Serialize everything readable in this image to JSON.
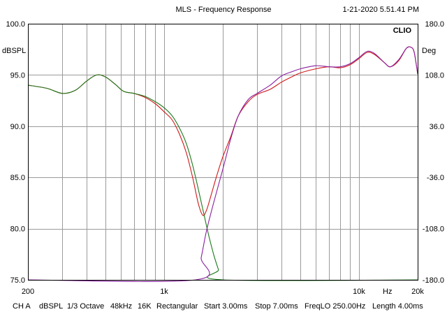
{
  "header": {
    "title": "MLS - Frequency Response",
    "datetime": "1-21-2020 5.51.41 PM",
    "brand": "CLIO"
  },
  "footer": {
    "channel": "CH A",
    "unit": "dBSPL",
    "smoothing": "1/3 Octave",
    "sample_rate": "48kHz",
    "size": "16K",
    "window": "Rectangular",
    "start": "Start 3.00ms",
    "stop": "Stop 7.00ms",
    "freqlo": "FreqLO 250.00Hz",
    "length": "Length 4.00ms"
  },
  "chart_data": {
    "type": "line",
    "title": "MLS - Frequency Response",
    "x_scale": "log",
    "xlim": [
      200,
      20000
    ],
    "x_ticks": [
      {
        "value": 200,
        "label": "200"
      },
      {
        "value": 1000,
        "label": "1k"
      },
      {
        "value": 10000,
        "label": "10k"
      },
      {
        "value": 14000,
        "label": "Hz"
      },
      {
        "value": 20000,
        "label": "20k"
      }
    ],
    "x_gridlines": [
      300,
      400,
      500,
      600,
      700,
      800,
      900,
      1000,
      2000,
      3000,
      4000,
      5000,
      6000,
      7000,
      8000,
      9000,
      10000
    ],
    "ylabel_left": "dBSPL",
    "ylim_left": [
      75,
      100
    ],
    "y_ticks_left": [
      "100.0",
      "95.0",
      "90.0",
      "85.0",
      "80.0",
      "75.0"
    ],
    "ylabel_right": "Deg",
    "ylim_right": [
      -180,
      180
    ],
    "y_ticks_right": [
      "180.0",
      "108.0",
      "36.0",
      "-36.0",
      "-108.0",
      "-180.0"
    ],
    "grid": true,
    "series": [
      {
        "color": "#d01818",
        "points": [
          [
            200,
            94.0
          ],
          [
            250,
            93.7
          ],
          [
            300,
            93.2
          ],
          [
            350,
            93.5
          ],
          [
            400,
            94.4
          ],
          [
            450,
            95.0
          ],
          [
            500,
            94.8
          ],
          [
            560,
            94.1
          ],
          [
            620,
            93.4
          ],
          [
            700,
            93.2
          ],
          [
            800,
            92.8
          ],
          [
            900,
            92.2
          ],
          [
            1000,
            91.4
          ],
          [
            1100,
            90.6
          ],
          [
            1200,
            89.2
          ],
          [
            1300,
            87.4
          ],
          [
            1400,
            85.0
          ],
          [
            1500,
            82.4
          ],
          [
            1580,
            81.3
          ],
          [
            1650,
            81.8
          ],
          [
            1750,
            83.4
          ],
          [
            1850,
            85.0
          ],
          [
            2000,
            87.0
          ],
          [
            2200,
            89.0
          ],
          [
            2400,
            91.0
          ],
          [
            2700,
            92.4
          ],
          [
            3000,
            93.1
          ],
          [
            3500,
            93.6
          ],
          [
            4000,
            94.3
          ],
          [
            4500,
            94.8
          ],
          [
            5000,
            95.2
          ],
          [
            6000,
            95.6
          ],
          [
            7000,
            95.8
          ],
          [
            8000,
            95.7
          ],
          [
            9000,
            96.0
          ],
          [
            10000,
            96.6
          ],
          [
            11000,
            97.2
          ],
          [
            12000,
            97.0
          ],
          [
            13500,
            96.2
          ],
          [
            14500,
            95.8
          ],
          [
            16000,
            96.4
          ],
          [
            17500,
            97.6
          ],
          [
            18500,
            97.7
          ],
          [
            19200,
            97.2
          ],
          [
            20000,
            95.1
          ]
        ]
      },
      {
        "color": "#1a7a1a",
        "points": [
          [
            200,
            94.0
          ],
          [
            250,
            93.7
          ],
          [
            300,
            93.2
          ],
          [
            350,
            93.5
          ],
          [
            400,
            94.4
          ],
          [
            450,
            95.0
          ],
          [
            500,
            94.8
          ],
          [
            560,
            94.1
          ],
          [
            620,
            93.4
          ],
          [
            700,
            93.2
          ],
          [
            800,
            92.9
          ],
          [
            900,
            92.4
          ],
          [
            1000,
            91.8
          ],
          [
            1100,
            91.0
          ],
          [
            1200,
            89.8
          ],
          [
            1300,
            88.3
          ],
          [
            1400,
            86.2
          ],
          [
            1500,
            83.8
          ],
          [
            1600,
            81.4
          ],
          [
            1700,
            79.2
          ],
          [
            1800,
            77.4
          ],
          [
            1900,
            76.0
          ],
          [
            2000,
            75.0
          ],
          [
            20000,
            75.0
          ]
        ]
      },
      {
        "color": "#8a1fa0",
        "points": [
          [
            200,
            75.0
          ],
          [
            1450,
            75.0
          ],
          [
            1550,
            77.2
          ],
          [
            1650,
            79.8
          ],
          [
            1800,
            82.6
          ],
          [
            2000,
            85.8
          ],
          [
            2200,
            88.8
          ],
          [
            2400,
            91.0
          ],
          [
            2700,
            92.6
          ],
          [
            3000,
            93.2
          ],
          [
            3500,
            94.0
          ],
          [
            4000,
            94.9
          ],
          [
            4500,
            95.3
          ],
          [
            5000,
            95.6
          ],
          [
            6000,
            95.9
          ],
          [
            7000,
            95.8
          ],
          [
            8000,
            95.8
          ],
          [
            9000,
            96.1
          ],
          [
            10000,
            96.7
          ],
          [
            11000,
            97.3
          ],
          [
            12000,
            97.1
          ],
          [
            13500,
            96.2
          ],
          [
            14500,
            95.8
          ],
          [
            16000,
            96.5
          ],
          [
            17500,
            97.6
          ],
          [
            18500,
            97.7
          ],
          [
            19200,
            97.2
          ],
          [
            20000,
            95.1
          ]
        ]
      }
    ]
  }
}
